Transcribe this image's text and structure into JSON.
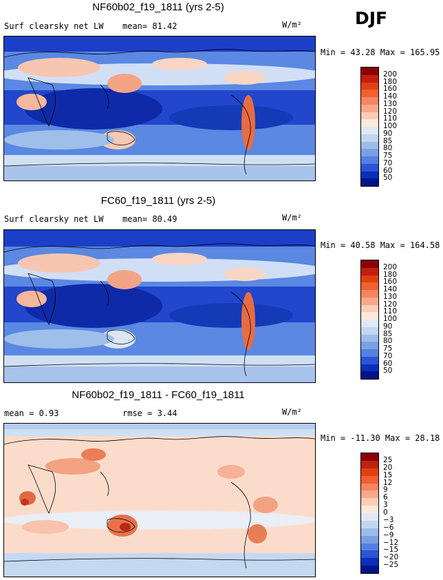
{
  "season": "DJF",
  "panels": [
    {
      "title": "NF60b02_f19_1811 (yrs 2-5)",
      "left_label": "Surf clearsky net LW",
      "stat1": "mean=  81.42",
      "stat2": "",
      "units": "W/m²",
      "minmax": "Min =  43.28 Max = 165.95",
      "colorbar_labels": [
        "200",
        "180",
        "160",
        "140",
        "130",
        "120",
        "110",
        "100",
        "90",
        "85",
        "80",
        "75",
        "70",
        "60",
        "50"
      ],
      "colorbar_colors": [
        "#8b0000",
        "#c0200e",
        "#e04010",
        "#f06030",
        "#f48560",
        "#f8a888",
        "#fbcdb5",
        "#fde9dc",
        "#dfe9f6",
        "#c2d6f0",
        "#9cbce8",
        "#7aa0e3",
        "#5580e0",
        "#2a55d6",
        "#0a2fb8",
        "#00148a"
      ],
      "kind": "absolute"
    },
    {
      "title": "FC60_f19_1811 (yrs 2-5)",
      "left_label": "Surf clearsky net LW",
      "stat1": "mean=  80.49",
      "stat2": "",
      "units": "W/m²",
      "minmax": "Min =  40.58 Max = 164.58",
      "colorbar_labels": [
        "200",
        "180",
        "160",
        "140",
        "130",
        "120",
        "110",
        "100",
        "90",
        "85",
        "80",
        "75",
        "70",
        "60",
        "50"
      ],
      "colorbar_colors": [
        "#8b0000",
        "#c0200e",
        "#e04010",
        "#f06030",
        "#f48560",
        "#f8a888",
        "#fbcdb5",
        "#fde9dc",
        "#dfe9f6",
        "#c2d6f0",
        "#9cbce8",
        "#7aa0e3",
        "#5580e0",
        "#2a55d6",
        "#0a2fb8",
        "#00148a"
      ],
      "kind": "absolute"
    },
    {
      "title": "NF60b02_f19_1811 - FC60_f19_1811",
      "left_label": "mean =   0.93",
      "stat1": "rmse =   3.44",
      "stat2": "",
      "units": "W/m²",
      "minmax": "Min = -11.30 Max =  28.18",
      "colorbar_labels": [
        "25",
        "20",
        "15",
        "12",
        "9",
        "6",
        "3",
        "0",
        "−3",
        "−6",
        "−9",
        "−12",
        "−15",
        "−20",
        "−25"
      ],
      "colorbar_colors": [
        "#8b0000",
        "#c0200e",
        "#e04010",
        "#f06030",
        "#f48560",
        "#f8a888",
        "#fbcdb5",
        "#fde9dc",
        "#dfe9f6",
        "#c2d6f0",
        "#9cbce8",
        "#7aa0e3",
        "#5580e0",
        "#2a55d6",
        "#0a2fb8",
        "#00148a"
      ],
      "kind": "difference"
    }
  ]
}
